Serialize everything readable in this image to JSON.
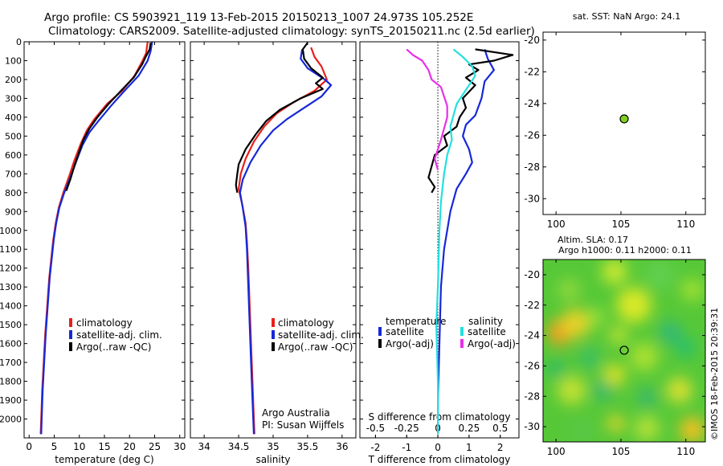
{
  "header": {
    "title_line1": "Argo profile: CS 5903921_119 13-Feb-2015 20150213_1007 24.973S 105.252E",
    "title_line2": "Climatology: CARS2009. Satellite-adjusted climatology: synTS_20150211.nc (2.5d earlier)"
  },
  "footer": {
    "argo_australia": "Argo Australia",
    "pi": "PI: Susan Wijffels",
    "copyright": "©IMOS 18-Feb-2015 20:39:31"
  },
  "colors": {
    "climatology": "#e8201c",
    "satellite": "#1628d8",
    "argo": "#000000",
    "sal_satellite": "#22e0e0",
    "sal_argo": "#e830e8",
    "marker_top": "#80d020"
  },
  "chart_data": [
    {
      "id": "temperature",
      "type": "line",
      "xlabel": "temperature (deg C)",
      "ylabel": "",
      "xlim": [
        -1,
        31
      ],
      "ylim": [
        2100,
        0
      ],
      "xticks": [
        0,
        5,
        10,
        15,
        20,
        25,
        30
      ],
      "yticks": [
        0,
        100,
        200,
        300,
        400,
        500,
        600,
        700,
        800,
        900,
        1000,
        1100,
        1200,
        1300,
        1400,
        1500,
        1600,
        1700,
        1800,
        1900,
        2000
      ],
      "legend": [
        "climatology",
        "satellite-adj. clim.",
        "Argo(..raw -QC)"
      ],
      "series": [
        {
          "name": "climatology",
          "color_key": "climatology",
          "points": [
            [
              23.6,
              0
            ],
            [
              23.3,
              60
            ],
            [
              22.6,
              100
            ],
            [
              21.0,
              180
            ],
            [
              18.5,
              260
            ],
            [
              15.5,
              330
            ],
            [
              13.0,
              410
            ],
            [
              11.5,
              470
            ],
            [
              10.3,
              540
            ],
            [
              9.0,
              630
            ],
            [
              8.0,
              710
            ],
            [
              6.8,
              800
            ],
            [
              5.9,
              880
            ],
            [
              5.3,
              960
            ],
            [
              4.8,
              1050
            ],
            [
              4.4,
              1150
            ],
            [
              4.0,
              1250
            ],
            [
              3.6,
              1400
            ],
            [
              3.2,
              1550
            ],
            [
              2.9,
              1700
            ],
            [
              2.6,
              1850
            ],
            [
              2.4,
              2000
            ],
            [
              2.3,
              2080
            ]
          ]
        },
        {
          "name": "satellite-adj. clim.",
          "color_key": "satellite",
          "points": [
            [
              24.5,
              0
            ],
            [
              24.2,
              50
            ],
            [
              23.6,
              100
            ],
            [
              21.8,
              180
            ],
            [
              19.0,
              260
            ],
            [
              16.3,
              340
            ],
            [
              13.8,
              420
            ],
            [
              12.0,
              480
            ],
            [
              10.6,
              550
            ],
            [
              9.3,
              640
            ],
            [
              8.2,
              720
            ],
            [
              7.0,
              800
            ],
            [
              6.0,
              880
            ],
            [
              5.4,
              960
            ],
            [
              4.9,
              1050
            ],
            [
              4.5,
              1150
            ],
            [
              4.1,
              1250
            ],
            [
              3.7,
              1400
            ],
            [
              3.3,
              1550
            ],
            [
              3.0,
              1700
            ],
            [
              2.7,
              1850
            ],
            [
              2.5,
              2000
            ],
            [
              2.4,
              2080
            ]
          ]
        },
        {
          "name": "Argo(..raw -QC)",
          "color_key": "argo",
          "points": [
            [
              24.2,
              5
            ],
            [
              24.0,
              40
            ],
            [
              23.2,
              80
            ],
            [
              22.5,
              120
            ],
            [
              20.8,
              190
            ],
            [
              18.3,
              260
            ],
            [
              15.8,
              330
            ],
            [
              13.6,
              400
            ],
            [
              12.0,
              460
            ],
            [
              10.8,
              520
            ],
            [
              10.0,
              580
            ],
            [
              9.0,
              660
            ],
            [
              8.2,
              730
            ],
            [
              7.4,
              790
            ]
          ]
        }
      ]
    },
    {
      "id": "salinity",
      "type": "line",
      "xlabel": "salinity",
      "ylabel": "",
      "xlim": [
        33.8,
        36.2
      ],
      "ylim": [
        2100,
        0
      ],
      "xticks": [
        34,
        34.5,
        35,
        35.5,
        36
      ],
      "legend": [
        "climatology",
        "satellite-adj. clim.",
        "Argo(..raw -QC)"
      ],
      "series": [
        {
          "name": "climatology",
          "color_key": "climatology",
          "points": [
            [
              35.55,
              30
            ],
            [
              35.6,
              80
            ],
            [
              35.7,
              130
            ],
            [
              35.78,
              200
            ],
            [
              35.6,
              260
            ],
            [
              35.3,
              320
            ],
            [
              35.05,
              380
            ],
            [
              34.87,
              450
            ],
            [
              34.72,
              530
            ],
            [
              34.6,
              620
            ],
            [
              34.53,
              700
            ],
            [
              34.5,
              780
            ],
            [
              34.55,
              860
            ],
            [
              34.6,
              960
            ],
            [
              34.62,
              1060
            ],
            [
              34.64,
              1200
            ],
            [
              34.66,
              1400
            ],
            [
              34.68,
              1600
            ],
            [
              34.7,
              1800
            ],
            [
              34.72,
              2000
            ],
            [
              34.73,
              2080
            ]
          ]
        },
        {
          "name": "satellite-adj. clim.",
          "color_key": "satellite",
          "points": [
            [
              35.42,
              40
            ],
            [
              35.4,
              90
            ],
            [
              35.5,
              140
            ],
            [
              35.75,
              200
            ],
            [
              35.84,
              230
            ],
            [
              35.7,
              290
            ],
            [
              35.45,
              350
            ],
            [
              35.2,
              410
            ],
            [
              35.0,
              470
            ],
            [
              34.82,
              550
            ],
            [
              34.67,
              640
            ],
            [
              34.56,
              730
            ],
            [
              34.52,
              800
            ],
            [
              34.56,
              880
            ],
            [
              34.6,
              980
            ],
            [
              34.62,
              1100
            ],
            [
              34.64,
              1300
            ],
            [
              34.66,
              1500
            ],
            [
              34.68,
              1700
            ],
            [
              34.7,
              1900
            ],
            [
              34.72,
              2080
            ]
          ]
        },
        {
          "name": "Argo(..raw -QC)",
          "color_key": "argo",
          "points": [
            [
              35.5,
              5
            ],
            [
              35.43,
              40
            ],
            [
              35.45,
              90
            ],
            [
              35.55,
              140
            ],
            [
              35.72,
              190
            ],
            [
              35.62,
              220
            ],
            [
              35.72,
              250
            ],
            [
              35.4,
              300
            ],
            [
              35.1,
              360
            ],
            [
              34.9,
              420
            ],
            [
              34.75,
              490
            ],
            [
              34.6,
              570
            ],
            [
              34.5,
              650
            ],
            [
              34.48,
              700
            ],
            [
              34.46,
              760
            ],
            [
              34.48,
              800
            ]
          ]
        }
      ]
    },
    {
      "id": "difference",
      "type": "line",
      "xlabel": "T difference from climatology",
      "xlabel_top": "S difference from climatology",
      "xlim": [
        -2.5,
        2.6
      ],
      "ylim": [
        2100,
        0
      ],
      "xticks_T": [
        -2,
        -1,
        0,
        1,
        2
      ],
      "xticks_S": [
        "-0.5",
        "-0.25",
        "0",
        "0.25",
        "0.5"
      ],
      "legend_left_title": "temperature",
      "legend_right_title": "salinity",
      "legend": [
        "satellite",
        "Argo(-adj)",
        "satellite",
        "Argo(-adj)"
      ],
      "series": [
        {
          "name": "satellite",
          "group": "temperature",
          "color_key": "satellite",
          "points": [
            [
              1.5,
              40
            ],
            [
              1.6,
              90
            ],
            [
              1.8,
              150
            ],
            [
              1.5,
              210
            ],
            [
              1.4,
              300
            ],
            [
              1.2,
              390
            ],
            [
              0.9,
              440
            ],
            [
              0.8,
              500
            ],
            [
              1.0,
              570
            ],
            [
              1.1,
              640
            ],
            [
              0.9,
              700
            ],
            [
              0.6,
              780
            ],
            [
              0.4,
              900
            ],
            [
              0.2,
              1100
            ],
            [
              0.1,
              1300
            ],
            [
              0.05,
              1600
            ],
            [
              0.0,
              1900
            ],
            [
              0.0,
              2080
            ]
          ]
        },
        {
          "name": "Argo(-adj)",
          "group": "temperature",
          "color_key": "argo",
          "points": [
            [
              1.2,
              40
            ],
            [
              2.4,
              70
            ],
            [
              1.8,
              100
            ],
            [
              1.0,
              120
            ],
            [
              1.3,
              150
            ],
            [
              0.9,
              190
            ],
            [
              1.2,
              230
            ],
            [
              0.8,
              300
            ],
            [
              0.9,
              350
            ],
            [
              0.7,
              400
            ],
            [
              0.6,
              450
            ],
            [
              0.2,
              500
            ],
            [
              0.3,
              550
            ],
            [
              -0.1,
              600
            ],
            [
              -0.2,
              660
            ],
            [
              -0.3,
              720
            ],
            [
              -0.1,
              770
            ],
            [
              -0.2,
              800
            ]
          ]
        },
        {
          "name": "satellite",
          "group": "salinity",
          "color_key": "sal_satellite",
          "points": [
            [
              0.5,
              40
            ],
            [
              0.8,
              80
            ],
            [
              1.1,
              130
            ],
            [
              1.2,
              180
            ],
            [
              1.0,
              230
            ],
            [
              0.8,
              280
            ],
            [
              0.6,
              330
            ],
            [
              0.5,
              390
            ],
            [
              0.4,
              450
            ],
            [
              0.45,
              520
            ],
            [
              0.3,
              600
            ],
            [
              0.2,
              700
            ],
            [
              0.1,
              850
            ],
            [
              0.05,
              1000
            ],
            [
              0.0,
              1300
            ],
            [
              -0.05,
              1500
            ],
            [
              0.0,
              1800
            ],
            [
              0.0,
              2080
            ]
          ]
        },
        {
          "name": "Argo(-adj)",
          "group": "salinity",
          "color_key": "sal_argo",
          "points": [
            [
              -1.0,
              40
            ],
            [
              -0.8,
              70
            ],
            [
              -0.5,
              100
            ],
            [
              -0.3,
              150
            ],
            [
              -0.2,
              200
            ],
            [
              0.1,
              240
            ],
            [
              0.2,
              290
            ],
            [
              0.3,
              340
            ],
            [
              0.3,
              400
            ],
            [
              0.2,
              460
            ],
            [
              0.1,
              520
            ],
            [
              0.0,
              570
            ],
            [
              -0.1,
              620
            ],
            [
              0.0,
              680
            ]
          ]
        }
      ]
    },
    {
      "id": "location_sst",
      "type": "scatter",
      "title": "sat. SST: NaN Argo: 24.1",
      "xlim": [
        99,
        111.5
      ],
      "ylim": [
        -31,
        -19.5
      ],
      "xticks": [
        100,
        105,
        110
      ],
      "yticks": [
        -20,
        -22,
        -24,
        -26,
        -28,
        -30
      ],
      "points": [
        [
          105.25,
          -24.97
        ]
      ]
    },
    {
      "id": "location_sla",
      "type": "heatmap",
      "title_line1": "Altim. SLA: 0.17",
      "title_line2": "Argo h1000: 0.11 h2000: 0.11",
      "xlim": [
        99,
        111.5
      ],
      "ylim": [
        -31,
        -19
      ],
      "xticks": [
        100,
        105,
        110
      ],
      "yticks": [
        -20,
        -22,
        -24,
        -26,
        -28,
        -30
      ],
      "points": [
        [
          105.25,
          -24.97
        ]
      ]
    }
  ]
}
